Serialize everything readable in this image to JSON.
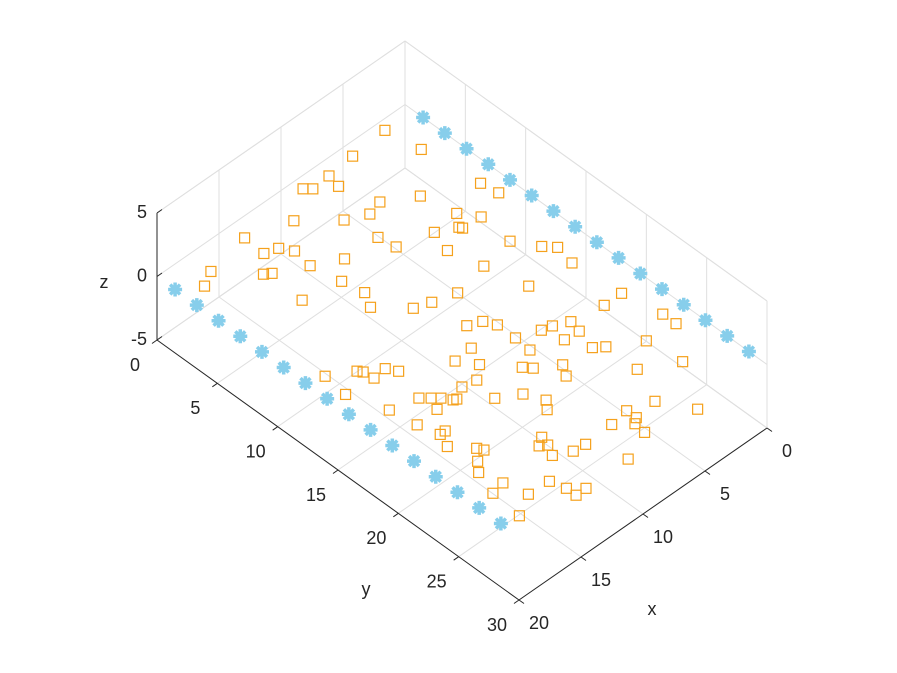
{
  "chart_data": {
    "type": "scatter3d",
    "x_label": "x",
    "y_label": "y",
    "z_label": "z",
    "xlim": [
      0,
      20
    ],
    "ylim": [
      0,
      30
    ],
    "zlim": [
      -5,
      5
    ],
    "xticks": [
      0,
      5,
      10,
      15,
      20
    ],
    "yticks": [
      0,
      5,
      10,
      15,
      20,
      25,
      30
    ],
    "zticks": [
      -5,
      0,
      5
    ],
    "grid": true,
    "series": [
      {
        "color": "#87ceeb",
        "marker": "asterisk",
        "x": [
          20,
          20,
          20,
          20,
          20,
          20,
          20,
          20,
          20,
          20,
          20,
          20,
          20,
          20,
          20,
          20
        ],
        "y": [
          1.5,
          3.3,
          5.1,
          6.9,
          8.7,
          10.5,
          12.3,
          14.1,
          15.9,
          17.7,
          19.5,
          21.3,
          23.1,
          24.9,
          26.7,
          28.5
        ],
        "z": [
          0,
          0,
          0,
          0,
          0,
          0,
          0,
          0,
          0,
          0,
          0,
          0,
          0,
          0,
          0,
          0
        ]
      },
      {
        "color": "#87ceeb",
        "marker": "asterisk",
        "x": [
          0,
          0,
          0,
          0,
          0,
          0,
          0,
          0,
          0,
          0,
          0,
          0,
          0,
          0,
          0,
          0
        ],
        "y": [
          1.5,
          3.3,
          5.1,
          6.9,
          8.7,
          10.5,
          12.3,
          14.1,
          15.9,
          17.7,
          19.5,
          21.3,
          23.1,
          24.9,
          26.7,
          28.5
        ],
        "z": [
          0,
          0,
          0,
          0,
          0,
          0,
          0,
          0,
          0,
          0,
          0,
          0,
          0,
          0,
          0,
          0
        ]
      },
      {
        "color": "#f5a11c",
        "marker": "square",
        "x": [
          2.3,
          5.1,
          1.9,
          7.2,
          9.0,
          8.6,
          7.4,
          1.4,
          1.2,
          4.6,
          6.6,
          11.2,
          9.1,
          7.7,
          4.1,
          3.3,
          4.8,
          4.7,
          14.2,
          14.3,
          13.4,
          12.9,
          8.7,
          8.5,
          6.1,
          6.6,
          3.5,
          2.5,
          1.9,
          2.2,
          6.0,
          17.5,
          15.5,
          15.1,
          13.1,
          11.3,
          12.7,
          18.6,
          15.4,
          12.4,
          13.0,
          11.3,
          10.2,
          8.6,
          5.3,
          3.3,
          1.9,
          10.1,
          9.2,
          8.8,
          6.6,
          5.6,
          1.4,
          3.6,
          1.4,
          8.8,
          7.3,
          6.9,
          5.8,
          6.2,
          5.6,
          8.9,
          12.6,
          11.2,
          11.8,
          12.8,
          8.4,
          8.9,
          10.2,
          9.8,
          15.5,
          17.2,
          17.0,
          16.9,
          15.9,
          18.8,
          5.6,
          3.3,
          13.8,
          15.3,
          14.9,
          14.7,
          13.1,
          11.7,
          11.1,
          16.2,
          15.7,
          19.0,
          18.1,
          16.1,
          11.6,
          8.4,
          8.4,
          6.7,
          5.4,
          8.8,
          9.8,
          8.9,
          17.8,
          17.4,
          17.0,
          13.4,
          13.6,
          14.0,
          12.9,
          12.0,
          16.7,
          16.5,
          17.8,
          17.4,
          14.0,
          11.1,
          18.0,
          17.6,
          15.6,
          15.3,
          15.3,
          14.5,
          18.6,
          17.2,
          18.8
        ],
        "y": [
          0.7,
          0.9,
          3.3,
          1.1,
          0.8,
          1.2,
          2.1,
          7.7,
          9.0,
          6.0,
          4.7,
          2.3,
          4.3,
          5.0,
          8.5,
          9.7,
          9.4,
          9.6,
          1.3,
          3.0,
          3.3,
          4.1,
          6.7,
          8.0,
          8.7,
          10.3,
          12.3,
          13.9,
          14.6,
          16.1,
          12.7,
          1.9,
          4.2,
          4.5,
          5.6,
          6.6,
          7.8,
          2.5,
          7.3,
          9.4,
          10.5,
          12.3,
          12.7,
          13.2,
          15.7,
          19.9,
          19.9,
          15.5,
          15.9,
          16.7,
          19.0,
          19.5,
          22.8,
          23.7,
          23.9,
          18.2,
          18.8,
          20.3,
          20.4,
          21.9,
          22.4,
          19.5,
          17.1,
          17.0,
          18.3,
          19.1,
          21.7,
          22.5,
          20.2,
          20.7,
          15.4,
          13.7,
          14.0,
          14.8,
          14.7,
          12.7,
          25.0,
          26.4,
          18.9,
          18.7,
          19.3,
          19.4,
          20.9,
          21.8,
          23.1,
          17.8,
          18.3,
          14.6,
          17.3,
          19.2,
          23.7,
          27.0,
          27.8,
          27.6,
          29.8,
          28.1,
          27.2,
          29.0,
          19.3,
          20.8,
          20.8,
          25.1,
          25.8,
          26.6,
          27.2,
          27.3,
          23.1,
          23.5,
          21.8,
          23.9,
          25.5,
          29.9,
          24.6,
          26.2,
          28.0,
          29.1,
          29.9,
          29.9,
          26.4,
          27.9,
          28.8
        ],
        "z": [
          0,
          0,
          0,
          0,
          0,
          0,
          0,
          0,
          0,
          0,
          0,
          0,
          0,
          0,
          0,
          0,
          0,
          0,
          0,
          0,
          0,
          0,
          0,
          0,
          0,
          0,
          0,
          0,
          0,
          0,
          0,
          0,
          0,
          0,
          0,
          0,
          0,
          0,
          0,
          0,
          0,
          0,
          0,
          0,
          0,
          0,
          0,
          0,
          0,
          0,
          0,
          0,
          0,
          0,
          0,
          0,
          0,
          0,
          0,
          0,
          0,
          0,
          0,
          0,
          0,
          0,
          0,
          0,
          0,
          0,
          0,
          0,
          0,
          0,
          0,
          0,
          0,
          0,
          0,
          0,
          0,
          0,
          0,
          0,
          0,
          0,
          0,
          0,
          0,
          0,
          0,
          0,
          0,
          0,
          0,
          0,
          0,
          0,
          0,
          0,
          0,
          0,
          0,
          0,
          0,
          0,
          0,
          0,
          0,
          0,
          0,
          0,
          0,
          0,
          0,
          0,
          0,
          0,
          0,
          0,
          0
        ]
      }
    ]
  }
}
